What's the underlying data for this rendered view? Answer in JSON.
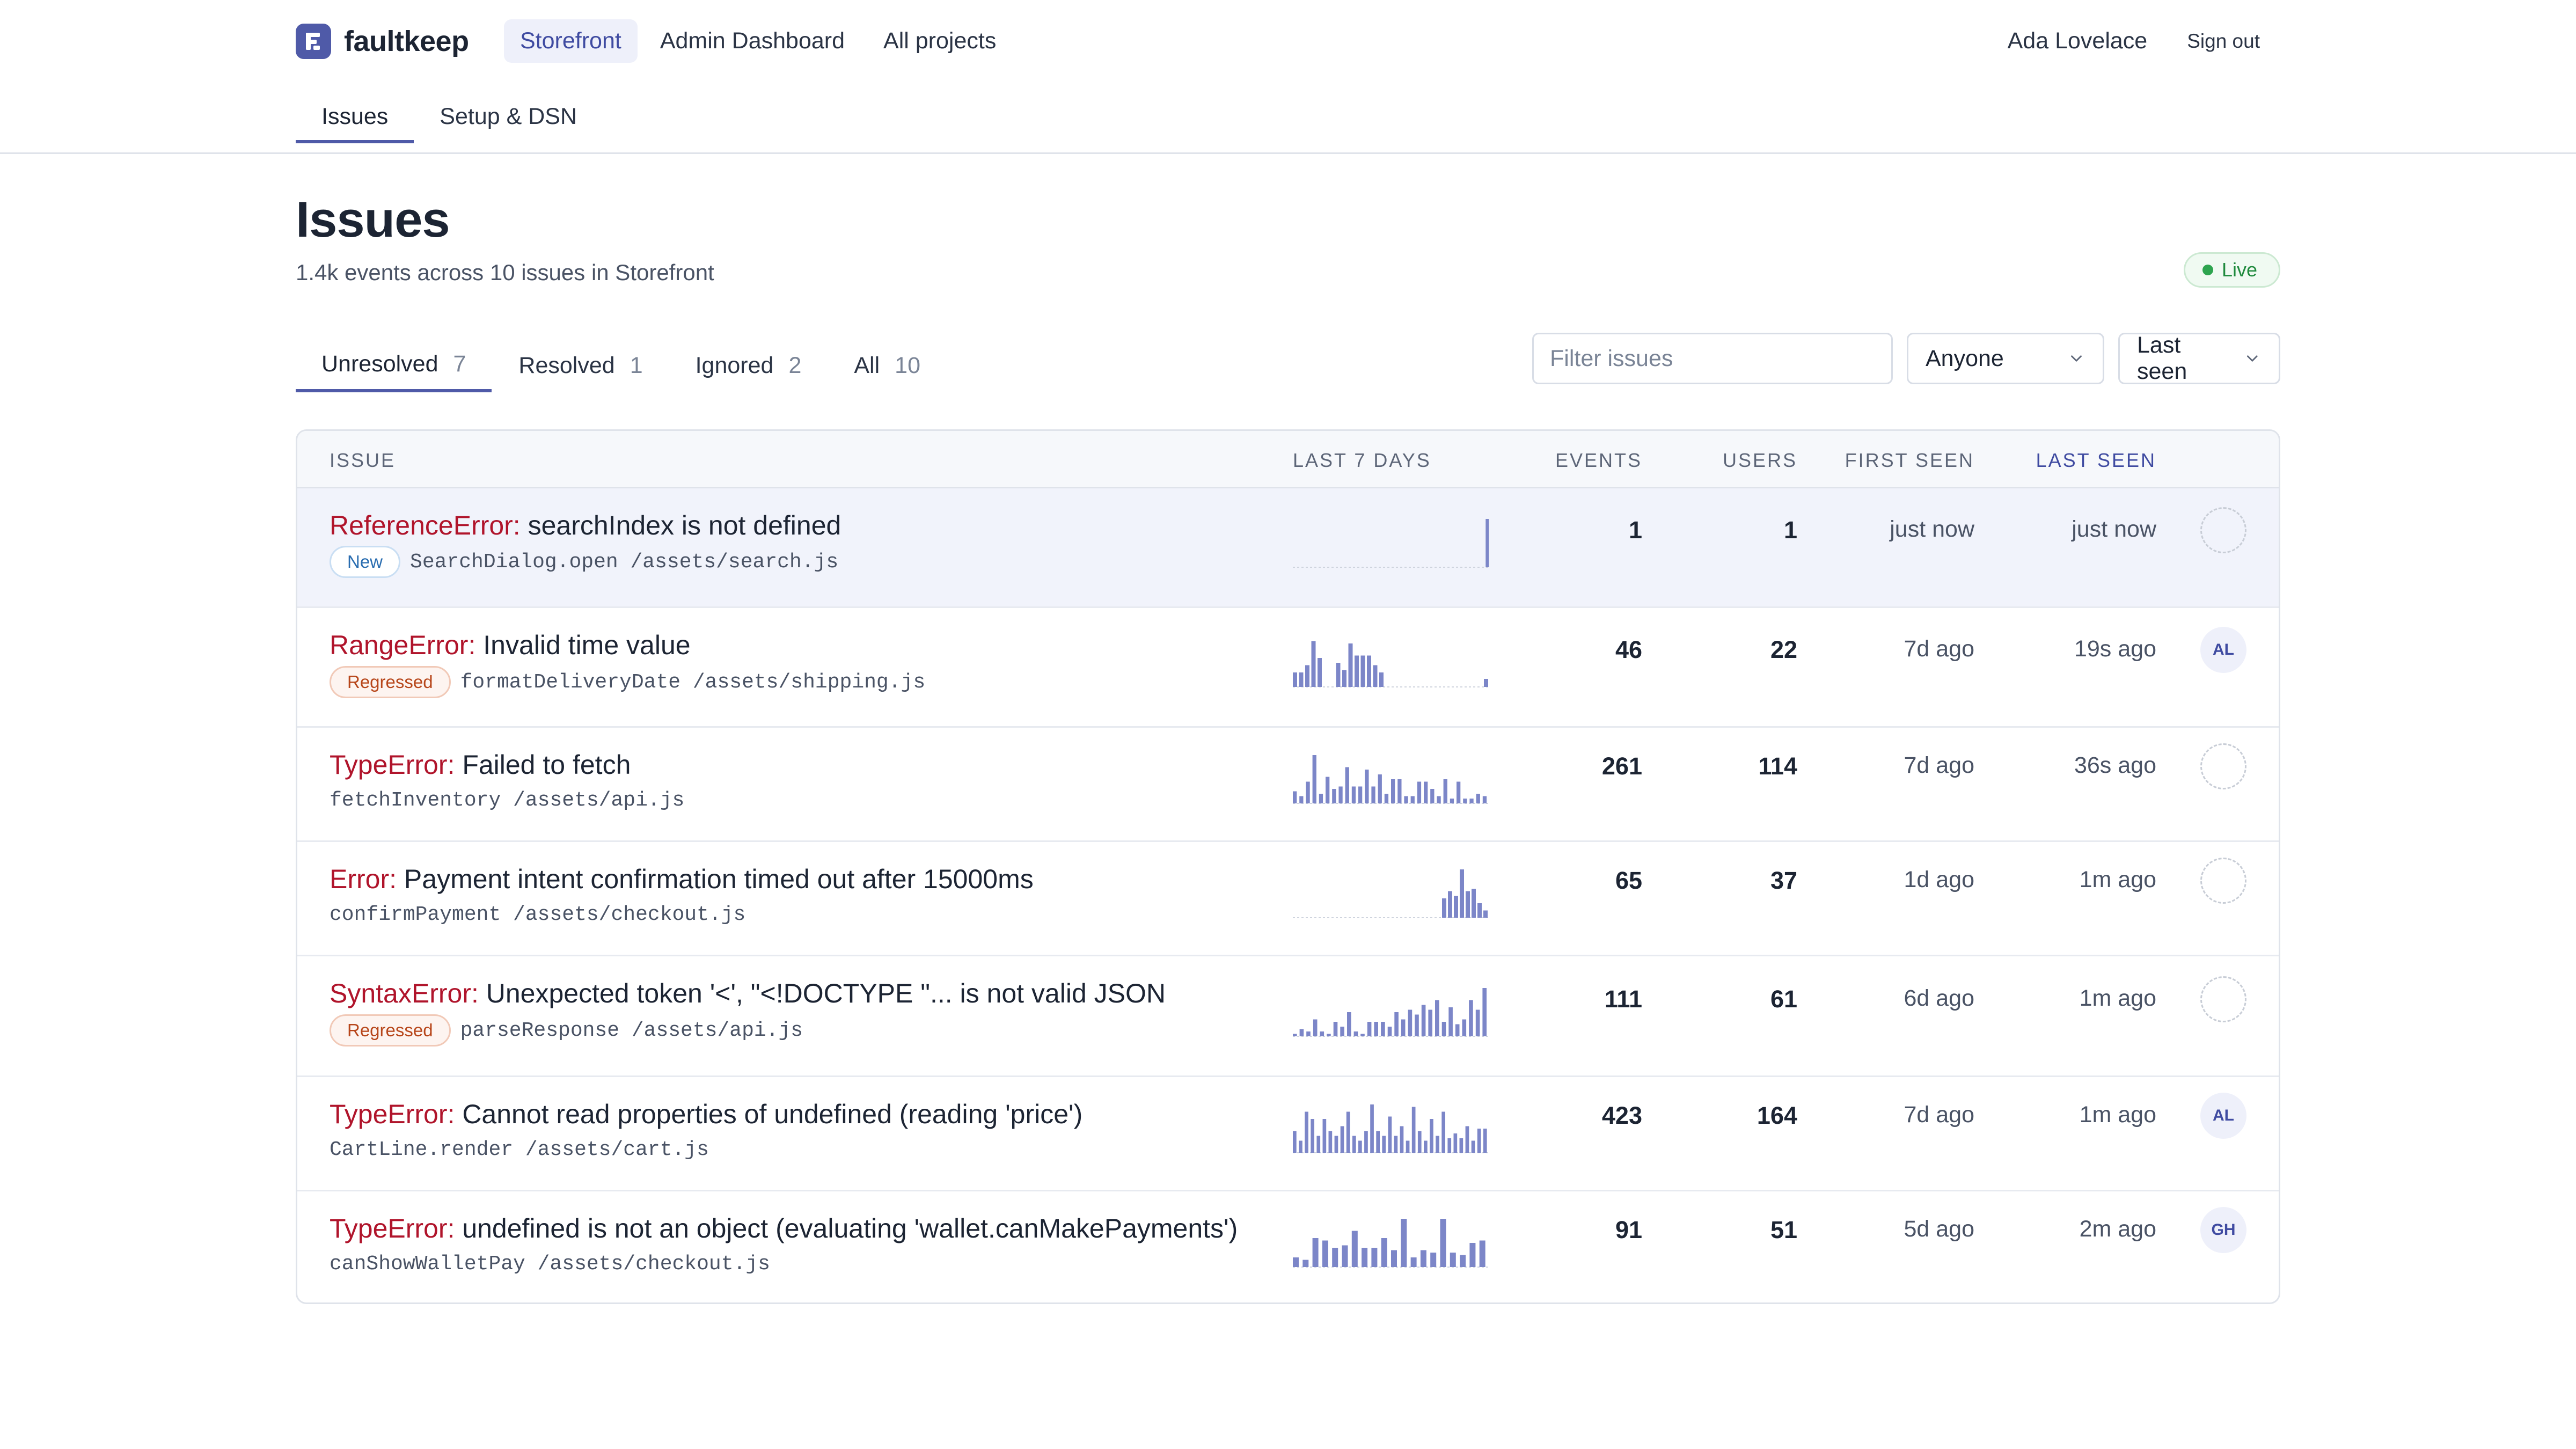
{
  "app": {
    "name": "faultkeep"
  },
  "project_nav": [
    "Storefront",
    "Admin Dashboard",
    "All projects"
  ],
  "user": {
    "name": "Ada Lovelace",
    "sign_out": "Sign out"
  },
  "sub_tabs": [
    "Issues",
    "Setup & DSN"
  ],
  "page": {
    "title": "Issues",
    "subtitle": "1.4k events across 10 issues in Storefront",
    "live_label": "Live"
  },
  "status_tabs": [
    {
      "label": "Unresolved",
      "count": "7"
    },
    {
      "label": "Resolved",
      "count": "1"
    },
    {
      "label": "Ignored",
      "count": "2"
    },
    {
      "label": "All",
      "count": "10"
    }
  ],
  "filters": {
    "search_placeholder": "Filter issues",
    "assignee": "Anyone",
    "sort": "Last seen"
  },
  "table": {
    "headers": [
      "ISSUE",
      "LAST 7 DAYS",
      "EVENTS",
      "USERS",
      "FIRST SEEN",
      "LAST SEEN"
    ],
    "rows": [
      {
        "type": "ReferenceError:",
        "message": "searchIndex is not defined",
        "badge": "New",
        "culprit": "SearchDialog.open /assets/search.js",
        "events": "1",
        "users": "1",
        "first_seen": "just now",
        "last_seen": "just now",
        "assignee": "",
        "spark": [
          0,
          0,
          0,
          0,
          0,
          0,
          0,
          0,
          0,
          0,
          0,
          0,
          0,
          0,
          0,
          0,
          0,
          0,
          0,
          0,
          0,
          0,
          0,
          0,
          0,
          0,
          0,
          0,
          0,
          0,
          0,
          0,
          0,
          0,
          0,
          0,
          0,
          0,
          0,
          0,
          0,
          0,
          0,
          0,
          0,
          0,
          0,
          0,
          0,
          0,
          0,
          0,
          0,
          0,
          1.0
        ]
      },
      {
        "type": "RangeError:",
        "message": "Invalid time value",
        "badge": "Regressed",
        "culprit": "formatDeliveryDate /assets/shipping.js",
        "events": "46",
        "users": "22",
        "first_seen": "7d ago",
        "last_seen": "19s ago",
        "assignee": "AL",
        "spark": [
          0.3,
          0.3,
          0.45,
          0.95,
          0.6,
          0,
          0,
          0.5,
          0.35,
          0.9,
          0.65,
          0.65,
          0.65,
          0.45,
          0.3,
          0.15
        ]
      },
      {
        "type": "TypeError:",
        "message": "Failed to fetch",
        "badge": "",
        "culprit": "fetchInventory /assets/api.js",
        "events": "261",
        "users": "114",
        "first_seen": "7d ago",
        "last_seen": "36s ago",
        "assignee": "",
        "spark": [
          0.25,
          0.15,
          0.45,
          1.0,
          0.2,
          0.55,
          0.3,
          0.35,
          0.75,
          0.35,
          0.35,
          0.7,
          0.35,
          0.6,
          0.2,
          0.5,
          0.5,
          0.15,
          0.15,
          0.45,
          0.45,
          0.3,
          0.15,
          0.5,
          0.1,
          0.45,
          0.1,
          0.1,
          0.2,
          0.15
        ]
      },
      {
        "type": "Error:",
        "message": "Payment intent confirmation timed out after 15000ms",
        "badge": "",
        "culprit": "confirmPayment /assets/checkout.js",
        "events": "65",
        "users": "37",
        "first_seen": "1d ago",
        "last_seen": "1m ago",
        "assignee": "",
        "spark": [
          0.4,
          0.55,
          0.45,
          1.0,
          0.55,
          0.6,
          0.3,
          0.15
        ]
      },
      {
        "type": "SyntaxError:",
        "message": "Unexpected token '<', \"<!DOCTYPE \"... is not valid JSON",
        "badge": "Regressed",
        "culprit": "parseResponse /assets/api.js",
        "events": "111",
        "users": "61",
        "first_seen": "6d ago",
        "last_seen": "1m ago",
        "assignee": "",
        "spark": [
          0.05,
          0.15,
          0.1,
          0.35,
          0.1,
          0.05,
          0.3,
          0.2,
          0.5,
          0.1,
          0.05,
          0.3,
          0.3,
          0.3,
          0.2,
          0.5,
          0.35,
          0.55,
          0.45,
          0.65,
          0.55,
          0.75,
          0.3,
          0.6,
          0.25,
          0.35,
          0.75,
          0.55,
          1.0
        ]
      },
      {
        "type": "TypeError:",
        "message": "Cannot read properties of undefined (reading 'price')",
        "badge": "",
        "culprit": "CartLine.render /assets/cart.js",
        "events": "423",
        "users": "164",
        "first_seen": "7d ago",
        "last_seen": "1m ago",
        "assignee": "AL",
        "spark": [
          0.45,
          0.25,
          0.85,
          0.7,
          0.35,
          0.7,
          0.45,
          0.35,
          0.55,
          0.85,
          0.35,
          0.25,
          0.45,
          1.0,
          0.45,
          0.35,
          0.75,
          0.35,
          0.55,
          0.25,
          0.95,
          0.45,
          0.25,
          0.7,
          0.35,
          0.85,
          0.3,
          0.4,
          0.3,
          0.55,
          0.25,
          0.5,
          0.5
        ]
      },
      {
        "type": "TypeError:",
        "message": "undefined is not an object (evaluating 'wallet.canMakePayments')",
        "badge": "",
        "culprit": "canShowWalletPay /assets/checkout.js",
        "events": "91",
        "users": "51",
        "first_seen": "5d ago",
        "last_seen": "2m ago",
        "assignee": "GH",
        "spark": [
          0.2,
          0.15,
          0.6,
          0.55,
          0.4,
          0.45,
          0.75,
          0.4,
          0.4,
          0.6,
          0.35,
          1.0,
          0.2,
          0.35,
          0.3,
          1.0,
          0.3,
          0.25,
          0.5,
          0.55
        ]
      }
    ]
  },
  "colors": {
    "accent": "#4f5aa8",
    "error_type": "#b0142b",
    "spark_bar": "#7c86c8",
    "live": "#2ea44f",
    "regressed": "#b7461a",
    "new": "#2a6db0"
  },
  "icons": [
    "faultkeep-logo-icon",
    "chevron-down-icon",
    "live-dot-icon"
  ]
}
